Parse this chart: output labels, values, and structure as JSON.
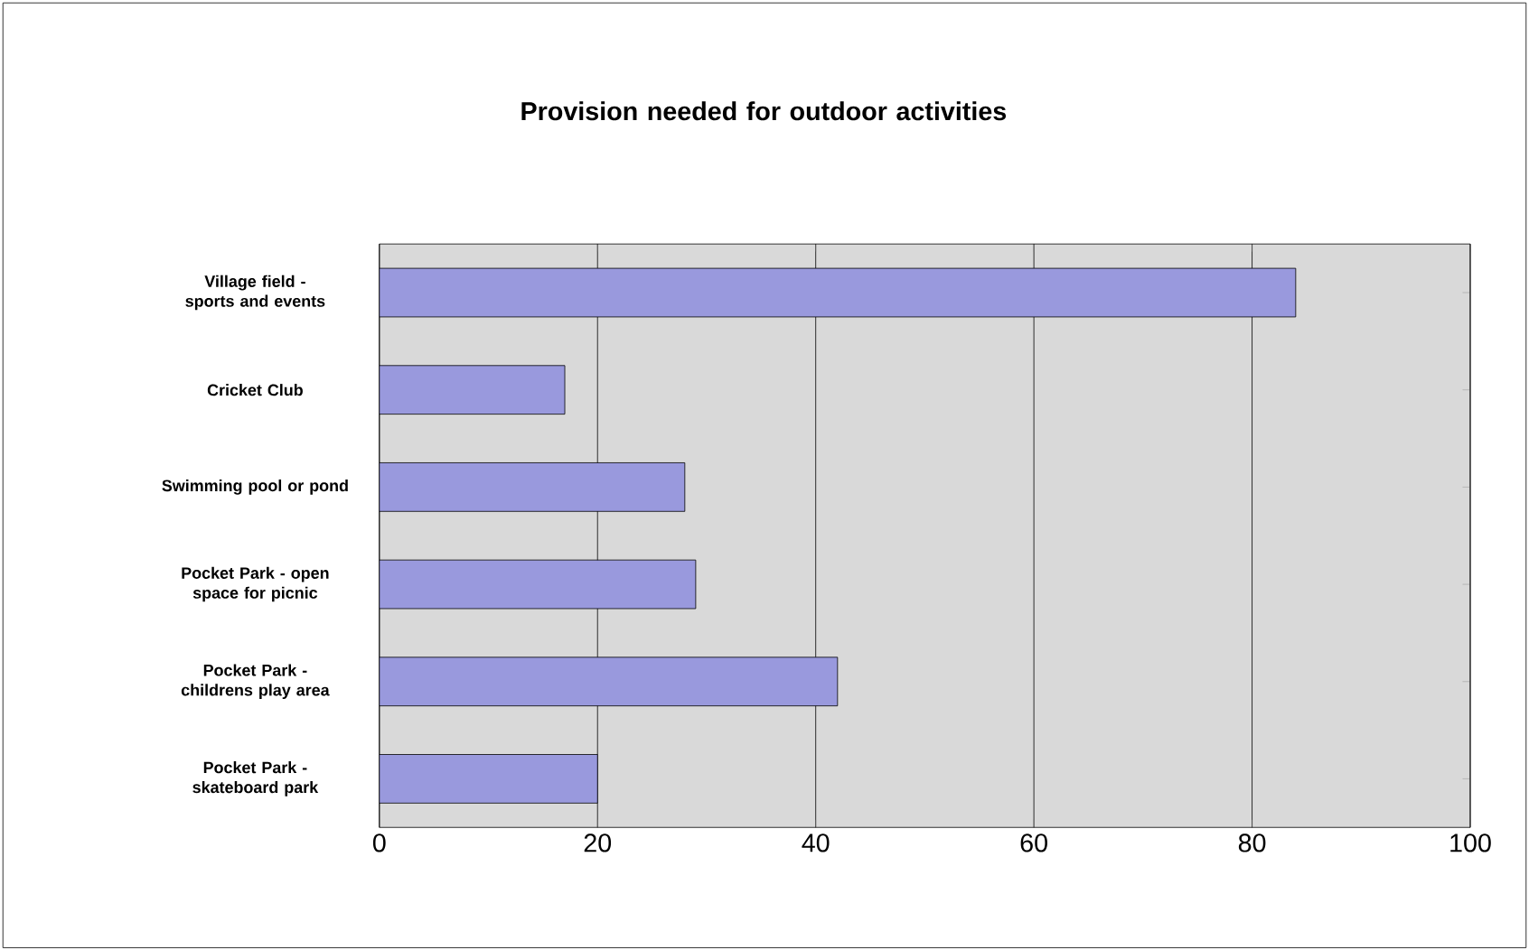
{
  "chart_data": {
    "type": "bar",
    "orientation": "horizontal",
    "title": "Provision needed for outdoor activities",
    "categories": [
      "Village field -sports and events",
      "Cricket Club",
      "Swimming pool or pond",
      "Pocket Park - open space for picnic",
      "Pocket Park - childrens play area",
      "Pocket Park - skateboard park"
    ],
    "values": [
      84,
      17,
      28,
      29,
      42,
      20
    ],
    "color": "#9999dd",
    "xlim": [
      0,
      100
    ],
    "xticks": [
      0,
      20,
      40,
      60,
      80,
      100
    ],
    "grid": "x"
  }
}
